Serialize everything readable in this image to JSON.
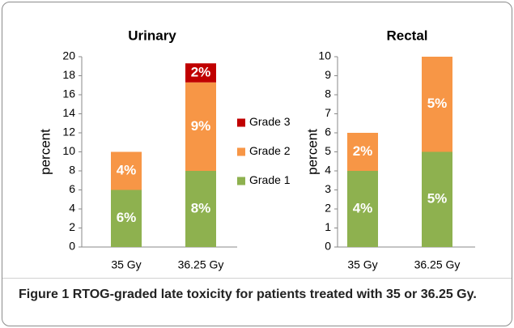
{
  "chart_data": [
    {
      "type": "bar",
      "stacked": true,
      "title": "Urinary",
      "ylabel": "percent",
      "categories": [
        "35 Gy",
        "36.25 Gy"
      ],
      "series": [
        {
          "name": "Grade 1",
          "color": "#8eb14f",
          "values": [
            6,
            8
          ],
          "value_labels": [
            "6%",
            "8%"
          ]
        },
        {
          "name": "Grade 2",
          "color": "#f79646",
          "values": [
            4,
            9.3
          ],
          "value_labels": [
            "4%",
            "9%"
          ]
        },
        {
          "name": "Grade 3",
          "color": "#c00000",
          "values": [
            null,
            2
          ],
          "value_labels": [
            null,
            "2%"
          ]
        }
      ],
      "ylim": [
        0,
        20
      ],
      "yticks": [
        0,
        2,
        4,
        6,
        8,
        10,
        12,
        14,
        16,
        18,
        20
      ],
      "legend": "right"
    },
    {
      "type": "bar",
      "stacked": true,
      "title": "Rectal",
      "ylabel": "percent",
      "categories": [
        "35 Gy",
        "36.25 Gy"
      ],
      "series": [
        {
          "color": "#8eb14f",
          "values": [
            4,
            5
          ],
          "value_labels": [
            "4%",
            "5%"
          ]
        },
        {
          "color": "#f79646",
          "values": [
            2,
            5
          ],
          "value_labels": [
            "2%",
            "5%"
          ]
        }
      ],
      "ylim": [
        0,
        10
      ],
      "yticks": [
        0,
        1,
        2,
        3,
        4,
        5,
        6,
        7,
        8,
        9,
        10
      ]
    }
  ],
  "caption": {
    "label": "Figure 1",
    "text": "RTOG-graded late toxicity for patients treated with 35 or 36.25 Gy."
  }
}
